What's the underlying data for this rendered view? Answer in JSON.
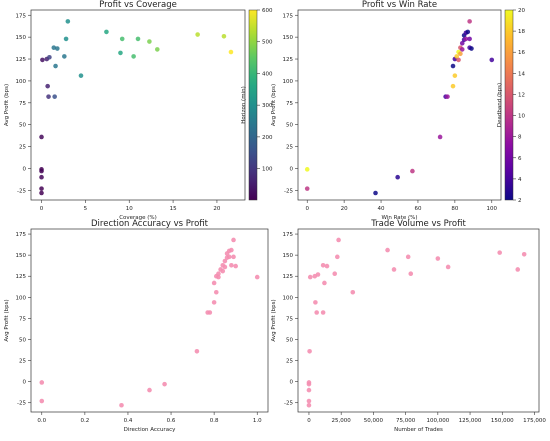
{
  "chart_data": [
    {
      "type": "scatter",
      "title": "Profit vs Coverage",
      "xlabel": "Coverage (%)",
      "ylabel": "Avg Profit (bps)",
      "xlim": [
        -1.2,
        23.2
      ],
      "ylim": [
        -36,
        181
      ],
      "xticks": [
        0,
        5,
        10,
        15,
        20
      ],
      "yticks": [
        -25,
        0,
        25,
        50,
        75,
        100,
        125,
        150,
        175
      ],
      "colorbar": {
        "label": "Horizon (min)",
        "min": 1,
        "max": 600,
        "ticks": [
          100,
          200,
          300,
          400,
          500,
          600
        ],
        "colormap": "viridis"
      },
      "points": [
        {
          "x": 0.0,
          "y": -1,
          "c": 1
        },
        {
          "x": 0.0,
          "y": -3,
          "c": 5
        },
        {
          "x": 0.0,
          "y": -10,
          "c": 10
        },
        {
          "x": 0.0,
          "y": -23,
          "c": 2
        },
        {
          "x": 0.0,
          "y": -28,
          "c": 3
        },
        {
          "x": 0.0,
          "y": 36,
          "c": 15
        },
        {
          "x": 0.1,
          "y": 124,
          "c": 30
        },
        {
          "x": 0.6,
          "y": 125,
          "c": 60
        },
        {
          "x": 0.7,
          "y": 94,
          "c": 60
        },
        {
          "x": 0.8,
          "y": 82,
          "c": 90
        },
        {
          "x": 0.9,
          "y": 127,
          "c": 120
        },
        {
          "x": 1.5,
          "y": 82,
          "c": 150
        },
        {
          "x": 1.6,
          "y": 117,
          "c": 240
        },
        {
          "x": 1.4,
          "y": 138,
          "c": 240
        },
        {
          "x": 1.8,
          "y": 137,
          "c": 240
        },
        {
          "x": 2.6,
          "y": 128,
          "c": 240
        },
        {
          "x": 2.8,
          "y": 148,
          "c": 300
        },
        {
          "x": 3.0,
          "y": 168,
          "c": 300
        },
        {
          "x": 4.5,
          "y": 106,
          "c": 300
        },
        {
          "x": 7.4,
          "y": 156,
          "c": 360
        },
        {
          "x": 9.0,
          "y": 132,
          "c": 360
        },
        {
          "x": 9.2,
          "y": 148,
          "c": 420
        },
        {
          "x": 10.5,
          "y": 128,
          "c": 420
        },
        {
          "x": 11.0,
          "y": 148,
          "c": 420
        },
        {
          "x": 12.3,
          "y": 145,
          "c": 480
        },
        {
          "x": 13.2,
          "y": 136,
          "c": 480
        },
        {
          "x": 17.8,
          "y": 153,
          "c": 540
        },
        {
          "x": 20.8,
          "y": 151,
          "c": 540
        },
        {
          "x": 21.6,
          "y": 133,
          "c": 600
        }
      ]
    },
    {
      "type": "scatter",
      "title": "Profit vs Win Rate",
      "xlabel": "Win Rate (%)",
      "ylabel": "Avg Profit (bps)",
      "xlim": [
        -5,
        105
      ],
      "ylim": [
        -36,
        181
      ],
      "xticks": [
        0,
        20,
        40,
        60,
        80,
        100
      ],
      "yticks": [
        -25,
        0,
        25,
        50,
        75,
        100,
        125,
        150,
        175
      ],
      "colorbar": {
        "label": "Deadband (bps)",
        "min": 2,
        "max": 20,
        "ticks": [
          2,
          4,
          6,
          8,
          10,
          12,
          14,
          16,
          18,
          20
        ],
        "colormap": "plasma"
      },
      "points": [
        {
          "x": 0,
          "y": -1,
          "c": 20
        },
        {
          "x": 0,
          "y": -23,
          "c": 10
        },
        {
          "x": 37,
          "y": -28,
          "c": 2
        },
        {
          "x": 49,
          "y": -10,
          "c": 3
        },
        {
          "x": 57,
          "y": -3,
          "c": 10
        },
        {
          "x": 72,
          "y": 36,
          "c": 8
        },
        {
          "x": 75,
          "y": 82,
          "c": 4
        },
        {
          "x": 76,
          "y": 82,
          "c": 8
        },
        {
          "x": 79,
          "y": 94,
          "c": 18
        },
        {
          "x": 80,
          "y": 106,
          "c": 18
        },
        {
          "x": 79,
          "y": 117,
          "c": 2
        },
        {
          "x": 80,
          "y": 125,
          "c": 4
        },
        {
          "x": 81,
          "y": 128,
          "c": 18
        },
        {
          "x": 82,
          "y": 133,
          "c": 20
        },
        {
          "x": 82,
          "y": 124,
          "c": 12
        },
        {
          "x": 83,
          "y": 131,
          "c": 16
        },
        {
          "x": 83,
          "y": 138,
          "c": 12
        },
        {
          "x": 84,
          "y": 136,
          "c": 8
        },
        {
          "x": 84,
          "y": 143,
          "c": 6
        },
        {
          "x": 85,
          "y": 147,
          "c": 4
        },
        {
          "x": 85,
          "y": 152,
          "c": 2
        },
        {
          "x": 86,
          "y": 155,
          "c": 4
        },
        {
          "x": 86,
          "y": 148,
          "c": 8
        },
        {
          "x": 87,
          "y": 156,
          "c": 2
        },
        {
          "x": 88,
          "y": 138,
          "c": 4
        },
        {
          "x": 88,
          "y": 148,
          "c": 6
        },
        {
          "x": 88,
          "y": 168,
          "c": 10
        },
        {
          "x": 89,
          "y": 137,
          "c": 2
        },
        {
          "x": 100,
          "y": 124,
          "c": 4
        }
      ]
    },
    {
      "type": "scatter",
      "title": "Direction Accuracy vs Profit",
      "xlabel": "Direction Accuracy",
      "ylabel": "Avg Profit (bps)",
      "xlim": [
        -0.05,
        1.05
      ],
      "ylim": [
        -36,
        181
      ],
      "xticks": [
        0.0,
        0.2,
        0.4,
        0.6,
        0.8,
        1.0
      ],
      "yticks": [
        -25,
        0,
        25,
        50,
        75,
        100,
        125,
        150,
        175
      ],
      "color": "#f48fb1",
      "points": [
        {
          "x": 0.0,
          "y": -1
        },
        {
          "x": 0.0,
          "y": -23
        },
        {
          "x": 0.37,
          "y": -28
        },
        {
          "x": 0.5,
          "y": -10
        },
        {
          "x": 0.57,
          "y": -3
        },
        {
          "x": 0.72,
          "y": 36
        },
        {
          "x": 0.77,
          "y": 82
        },
        {
          "x": 0.78,
          "y": 82
        },
        {
          "x": 0.8,
          "y": 94
        },
        {
          "x": 0.81,
          "y": 106
        },
        {
          "x": 0.8,
          "y": 117
        },
        {
          "x": 0.81,
          "y": 125
        },
        {
          "x": 0.82,
          "y": 128
        },
        {
          "x": 0.83,
          "y": 133
        },
        {
          "x": 0.82,
          "y": 124
        },
        {
          "x": 0.84,
          "y": 131
        },
        {
          "x": 0.84,
          "y": 138
        },
        {
          "x": 0.85,
          "y": 136
        },
        {
          "x": 0.85,
          "y": 143
        },
        {
          "x": 0.86,
          "y": 147
        },
        {
          "x": 0.86,
          "y": 152
        },
        {
          "x": 0.87,
          "y": 155
        },
        {
          "x": 0.87,
          "y": 148
        },
        {
          "x": 0.88,
          "y": 156
        },
        {
          "x": 0.88,
          "y": 138
        },
        {
          "x": 0.89,
          "y": 148
        },
        {
          "x": 0.89,
          "y": 168
        },
        {
          "x": 0.9,
          "y": 137
        },
        {
          "x": 1.0,
          "y": 124
        }
      ]
    },
    {
      "type": "scatter",
      "title": "Trade Volume vs Profit",
      "xlabel": "Number of Trades",
      "ylabel": "Avg Profit (bps)",
      "xlim": [
        -8500,
        178500
      ],
      "ylim": [
        -36,
        181
      ],
      "xticks": [
        0,
        25000,
        50000,
        75000,
        100000,
        125000,
        150000,
        175000
      ],
      "xticklabels": [
        "0",
        "25,000",
        "50,000",
        "75,000",
        "100,000",
        "125,000",
        "150,000",
        "175,000"
      ],
      "yticks": [
        -25,
        0,
        25,
        50,
        75,
        100,
        125,
        150,
        175
      ],
      "color": "#f48fb1",
      "points": [
        {
          "x": 0,
          "y": -1
        },
        {
          "x": 0,
          "y": -3
        },
        {
          "x": 0,
          "y": -10
        },
        {
          "x": 0,
          "y": -23
        },
        {
          "x": 0,
          "y": -28
        },
        {
          "x": 500,
          "y": 36
        },
        {
          "x": 1000,
          "y": 124
        },
        {
          "x": 4500,
          "y": 125
        },
        {
          "x": 5000,
          "y": 94
        },
        {
          "x": 6000,
          "y": 82
        },
        {
          "x": 7000,
          "y": 127
        },
        {
          "x": 11000,
          "y": 82
        },
        {
          "x": 12000,
          "y": 117
        },
        {
          "x": 11000,
          "y": 138
        },
        {
          "x": 14000,
          "y": 137
        },
        {
          "x": 20000,
          "y": 128
        },
        {
          "x": 22000,
          "y": 148
        },
        {
          "x": 23000,
          "y": 168
        },
        {
          "x": 34000,
          "y": 106
        },
        {
          "x": 61000,
          "y": 156
        },
        {
          "x": 66000,
          "y": 133
        },
        {
          "x": 77000,
          "y": 148
        },
        {
          "x": 79000,
          "y": 128
        },
        {
          "x": 100000,
          "y": 146
        },
        {
          "x": 108000,
          "y": 136
        },
        {
          "x": 148000,
          "y": 153
        },
        {
          "x": 162000,
          "y": 133
        },
        {
          "x": 167000,
          "y": 151
        }
      ]
    }
  ]
}
